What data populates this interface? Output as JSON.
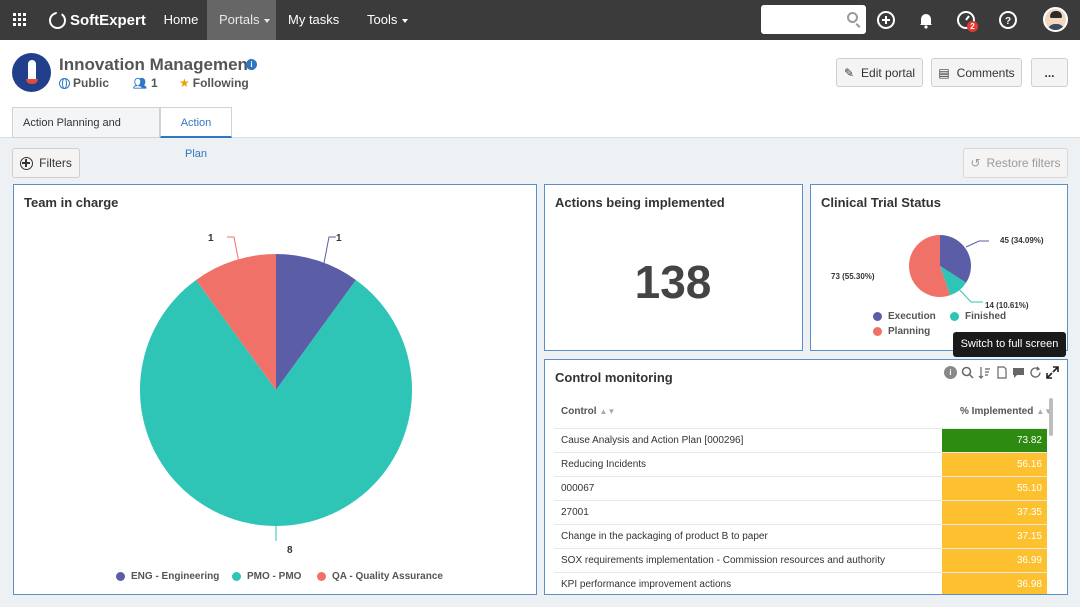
{
  "topbar": {
    "brand": "SoftExpert",
    "nav": [
      "Home",
      "Portals",
      "My tasks",
      "Tools"
    ],
    "search_placeholder": "",
    "notifications_badge": "2"
  },
  "portal": {
    "title": "Innovation Management",
    "visibility": "Public",
    "members": "1",
    "following": "Following",
    "edit_label": "Edit portal",
    "comments_label": "Comments",
    "more_label": "...",
    "tabs": [
      "Action Planning and Control",
      "Action Plan"
    ]
  },
  "filters": {
    "filters_label": "Filters",
    "restore_label": "Restore filters"
  },
  "team_panel": {
    "title": "Team in charge",
    "labels": {
      "eng": "1",
      "qa": "1",
      "pmo": "8"
    },
    "legend": [
      "ENG - Engineering",
      "PMO - PMO",
      "QA - Quality Assurance"
    ]
  },
  "actions_panel": {
    "title": "Actions being implemented",
    "value": "138"
  },
  "clinical_panel": {
    "title": "Clinical Trial Status",
    "labels": {
      "execution": "45 (34.09%)",
      "finished": "14 (10.61%)",
      "planning": "73 (55.30%)"
    },
    "legend": [
      "Execution",
      "Finished",
      "Planning"
    ]
  },
  "control_panel": {
    "title": "Control monitoring",
    "col_control": "Control",
    "col_pct": "% Implemented",
    "tooltip": "Switch to full screen",
    "rows": [
      {
        "control": "Cause Analysis and Action Plan [000296]",
        "pct": "73.82"
      },
      {
        "control": "Reducing Incidents",
        "pct": "56.16"
      },
      {
        "control": "000067",
        "pct": "55.10"
      },
      {
        "control": "27001",
        "pct": "37.35"
      },
      {
        "control": "Change in the packaging of product B to paper",
        "pct": "37.15"
      },
      {
        "control": "SOX requirements implementation - Commission resources and authority",
        "pct": "36.99"
      },
      {
        "control": "KPI performance improvement actions",
        "pct": "36.98"
      }
    ]
  },
  "chart_data": [
    {
      "type": "pie",
      "title": "Team in charge",
      "categories": [
        "ENG - Engineering",
        "PMO - PMO",
        "QA - Quality Assurance"
      ],
      "values": [
        1,
        8,
        1
      ],
      "colors": [
        "#5b5ea6",
        "#2ec4b6",
        "#f07167"
      ]
    },
    {
      "type": "pie",
      "title": "Clinical Trial Status",
      "categories": [
        "Execution",
        "Finished",
        "Planning"
      ],
      "values": [
        45,
        14,
        73
      ],
      "colors": [
        "#5b5ea6",
        "#2ec4b6",
        "#f07167"
      ]
    }
  ],
  "colors": {
    "topbar": "#3b3b3b",
    "accent": "#2f77c4",
    "green_cell": "#2e8b12",
    "yellow_cell": "#fdc02f"
  }
}
